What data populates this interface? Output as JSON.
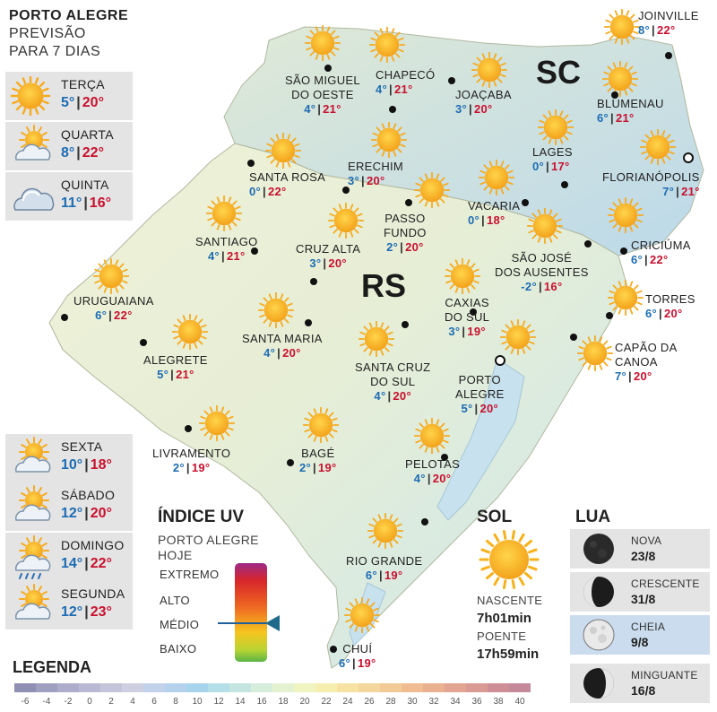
{
  "header": {
    "city": "PORTO ALEGRE",
    "line2": "PREVISÃO",
    "line3": "PARA 7 DIAS"
  },
  "forecast": [
    {
      "day": "TERÇA",
      "min": "5°",
      "max": "20°",
      "icon": "sun-icon"
    },
    {
      "day": "QUARTA",
      "min": "8°",
      "max": "22°",
      "icon": "sun-cloud-icon"
    },
    {
      "day": "QUINTA",
      "min": "11°",
      "max": "16°",
      "icon": "cloud-icon"
    },
    {
      "day": "SEXTA",
      "min": "10°",
      "max": "18°",
      "icon": "sun-cloud-icon"
    },
    {
      "day": "SÁBADO",
      "min": "12°",
      "max": "20°",
      "icon": "sun-cloud-icon"
    },
    {
      "day": "DOMINGO",
      "min": "14°",
      "max": "22°",
      "icon": "sun-cloud-rain-icon"
    },
    {
      "day": "SEGUNDA",
      "min": "12°",
      "max": "23°",
      "icon": "sun-cloud-icon"
    }
  ],
  "states": {
    "sc": "SC",
    "rs": "RS"
  },
  "cities": [
    {
      "name": "JOINVILLE",
      "min": "8°",
      "max": "22°"
    },
    {
      "name": "SÃO MIGUEL DO OESTE",
      "line1": "SÃO MIGUEL",
      "line2": "DO OESTE",
      "min": "4°",
      "max": "21°"
    },
    {
      "name": "CHAPECÓ",
      "min": "4°",
      "max": "21°"
    },
    {
      "name": "JOAÇABA",
      "min": "3°",
      "max": "20°"
    },
    {
      "name": "BLUMENAU",
      "min": "6°",
      "max": "21°"
    },
    {
      "name": "LAGES",
      "min": "0°",
      "max": "17°"
    },
    {
      "name": "FLORIANÓPOLIS",
      "min": "7°",
      "max": "21°"
    },
    {
      "name": "SANTA ROSA",
      "min": "0°",
      "max": "22°"
    },
    {
      "name": "ERECHIM",
      "min": "3°",
      "max": "20°"
    },
    {
      "name": "VACARIA",
      "min": "0°",
      "max": "18°"
    },
    {
      "name": "PASSO FUNDO",
      "line1": "PASSO",
      "line2": "FUNDO",
      "min": "2°",
      "max": "20°"
    },
    {
      "name": "SANTIAGO",
      "min": "4°",
      "max": "21°"
    },
    {
      "name": "CRUZ ALTA",
      "min": "3°",
      "max": "20°"
    },
    {
      "name": "SÃO JOSÉ DOS AUSENTES",
      "line1": "SÃO JOSÉ",
      "line2": "DOS AUSENTES",
      "min": "-2°",
      "max": "16°"
    },
    {
      "name": "CRICIÚMA",
      "min": "6°",
      "max": "22°"
    },
    {
      "name": "URUGUAIANA",
      "min": "6°",
      "max": "22°"
    },
    {
      "name": "TORRES",
      "min": "6°",
      "max": "20°"
    },
    {
      "name": "CAXIAS DO SUL",
      "line1": "CAXIAS",
      "line2": "DO SUL",
      "min": "3°",
      "max": "19°"
    },
    {
      "name": "SANTA MARIA",
      "min": "4°",
      "max": "20°"
    },
    {
      "name": "ALEGRETE",
      "min": "5°",
      "max": "21°"
    },
    {
      "name": "CAPÃO DA CANOA",
      "line1": "CAPÃO DA",
      "line2": "CANOA",
      "min": "7°",
      "max": "20°"
    },
    {
      "name": "SANTA CRUZ DO SUL",
      "line1": "SANTA CRUZ",
      "line2": "DO SUL",
      "min": "4°",
      "max": "20°"
    },
    {
      "name": "PORTO ALEGRE",
      "line1": "PORTO",
      "line2": "ALEGRE",
      "min": "5°",
      "max": "20°"
    },
    {
      "name": "LIVRAMENTO",
      "min": "2°",
      "max": "19°"
    },
    {
      "name": "BAGÉ",
      "min": "2°",
      "max": "19°"
    },
    {
      "name": "PELOTAS",
      "min": "4°",
      "max": "20°"
    },
    {
      "name": "RIO GRANDE",
      "min": "6°",
      "max": "19°"
    },
    {
      "name": "CHUÍ",
      "min": "6°",
      "max": "19°"
    }
  ],
  "uv": {
    "title": "ÍNDICE UV",
    "sub1": "PORTO ALEGRE",
    "sub2": "HOJE",
    "levels": [
      "EXTREMO",
      "ALTO",
      "MÉDIO",
      "BAIXO"
    ],
    "current": "MÉDIO"
  },
  "sun": {
    "title": "SOL",
    "rise_label": "NASCENTE",
    "rise": "7h01min",
    "set_label": "POENTE",
    "set": "17h59min"
  },
  "moon": {
    "title": "LUA",
    "phases": [
      {
        "name": "NOVA",
        "date": "23/8",
        "icon": "new-moon-icon"
      },
      {
        "name": "CRESCENTE",
        "date": "31/8",
        "icon": "first-quarter-moon-icon"
      },
      {
        "name": "CHEIA",
        "date": "9/8",
        "icon": "full-moon-icon",
        "current": true
      },
      {
        "name": "MINGUANTE",
        "date": "16/8",
        "icon": "last-quarter-moon-icon"
      }
    ]
  },
  "legend": {
    "title": "LEGENDA",
    "ticks": [
      "-6",
      "-4",
      "-2",
      "0",
      "2",
      "4",
      "6",
      "8",
      "10",
      "12",
      "14",
      "16",
      "18",
      "20",
      "22",
      "24",
      "26",
      "28",
      "30",
      "32",
      "34",
      "36",
      "38",
      "40"
    ],
    "colors": [
      "#8f8fb4",
      "#9f9fc0",
      "#adadcb",
      "#b9b9d3",
      "#c4c4da",
      "#cfcfe2",
      "#c2d2ea",
      "#b4d2ec",
      "#a7d4ec",
      "#b5dfe8",
      "#c5e6e0",
      "#d6eddc",
      "#e4f2d2",
      "#eff4c0",
      "#f5eeae",
      "#f6e3a3",
      "#f4d79c",
      "#f2ca96",
      "#efbd91",
      "#e9b18f",
      "#e3a591",
      "#d99a93",
      "#cd8f95",
      "#c48a9a"
    ]
  }
}
